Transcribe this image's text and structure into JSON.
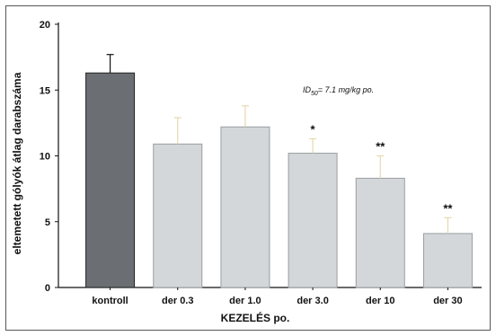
{
  "chart_data": {
    "type": "bar",
    "categories": [
      "kontroll",
      "der 0.3",
      "der 1.0",
      "der 3.0",
      "der 10",
      "der 30"
    ],
    "values": [
      16.3,
      10.9,
      12.2,
      10.2,
      8.3,
      4.1
    ],
    "errors": [
      1.4,
      2.0,
      1.6,
      1.1,
      1.7,
      1.2
    ],
    "significance": [
      "",
      "",
      "",
      "*",
      "**",
      "**"
    ],
    "bar_colors": [
      "#6b6e72",
      "#d4d7da",
      "#d4d7da",
      "#d4d7da",
      "#d4d7da",
      "#d4d7da"
    ],
    "xlabel": "KEZELÉS po.",
    "ylabel": "eltemetett gólyók átlag darabszáma",
    "ylim": [
      0,
      20
    ],
    "yticks": [
      0,
      5,
      10,
      15,
      20
    ],
    "annotation": {
      "prefix": "ID",
      "sub": "50",
      "rest": "= 7.1 mg/kg po."
    },
    "grid": false
  }
}
